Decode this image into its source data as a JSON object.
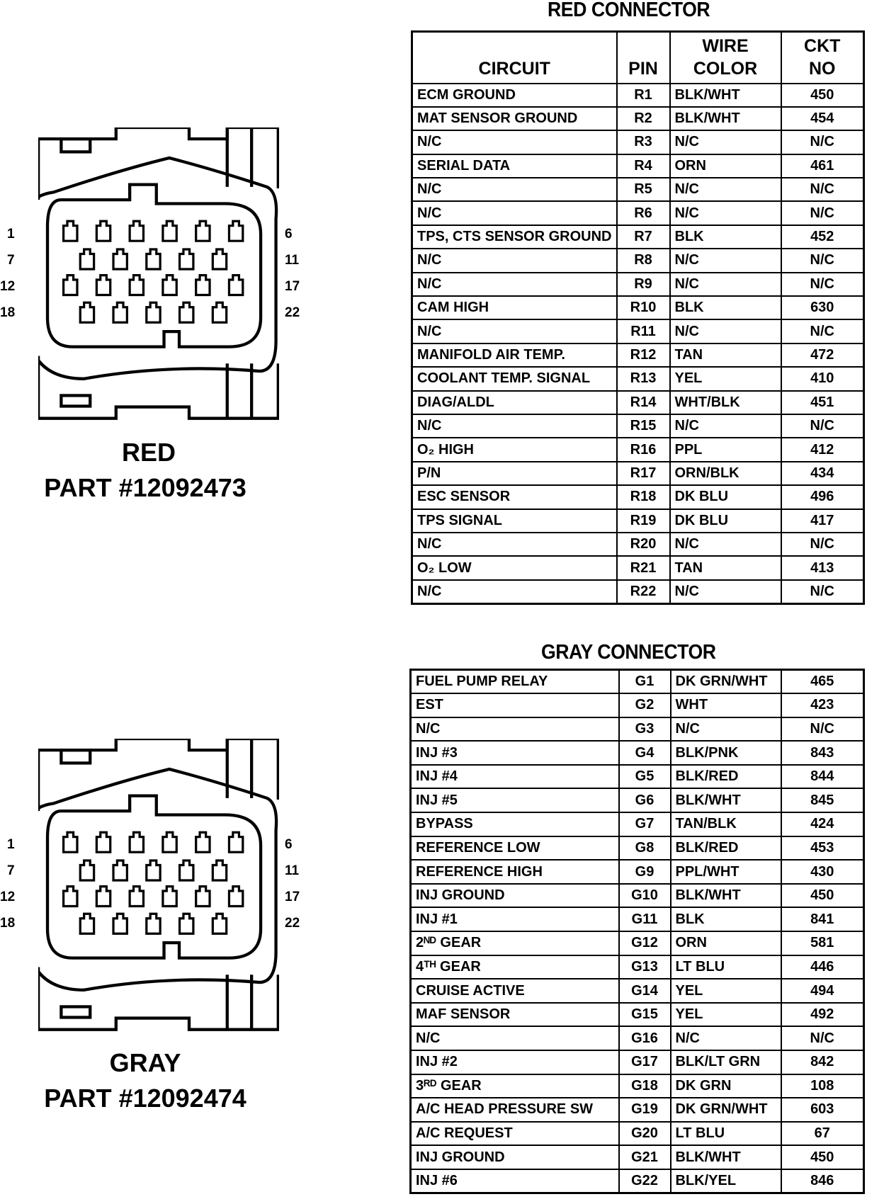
{
  "red": {
    "title": "RED CONNECTOR",
    "label": "RED",
    "part": "PART #12092473",
    "headers": {
      "circuit": "CIRCUIT",
      "pin": "PIN",
      "wire_line1": "WIRE",
      "wire_line2": "COLOR",
      "ckt_line1": "CKT",
      "ckt_line2": "NO"
    },
    "rows": [
      [
        "ECM GROUND",
        "R1",
        "BLK/WHT",
        "450"
      ],
      [
        "MAT SENSOR GROUND",
        "R2",
        "BLK/WHT",
        "454"
      ],
      [
        "N/C",
        "R3",
        "N/C",
        "N/C"
      ],
      [
        "SERIAL DATA",
        "R4",
        "ORN",
        "461"
      ],
      [
        "N/C",
        "R5",
        "N/C",
        "N/C"
      ],
      [
        "N/C",
        "R6",
        "N/C",
        "N/C"
      ],
      [
        "TPS, CTS SENSOR GROUND",
        "R7",
        "BLK",
        "452"
      ],
      [
        "N/C",
        "R8",
        "N/C",
        "N/C"
      ],
      [
        "N/C",
        "R9",
        "N/C",
        "N/C"
      ],
      [
        "CAM  HIGH",
        "R10",
        "BLK",
        "630"
      ],
      [
        "N/C",
        "R11",
        "N/C",
        "N/C"
      ],
      [
        "MANIFOLD AIR TEMP.",
        "R12",
        "TAN",
        "472"
      ],
      [
        "COOLANT TEMP. SIGNAL",
        "R13",
        "YEL",
        "410"
      ],
      [
        "DIAG/ALDL",
        "R14",
        "WHT/BLK",
        "451"
      ],
      [
        "N/C",
        "R15",
        "N/C",
        "N/C"
      ],
      [
        "O₂ HIGH",
        "R16",
        "PPL",
        "412"
      ],
      [
        "P/N",
        "R17",
        "ORN/BLK",
        "434"
      ],
      [
        "ESC SENSOR",
        "R18",
        "DK BLU",
        "496"
      ],
      [
        "TPS SIGNAL",
        "R19",
        "DK BLU",
        "417"
      ],
      [
        "N/C",
        "R20",
        "N/C",
        "N/C"
      ],
      [
        "O₂ LOW",
        "R21",
        "TAN",
        "413"
      ],
      [
        "N/C",
        "R22",
        "N/C",
        "N/C"
      ]
    ]
  },
  "gray": {
    "title": "GRAY CONNECTOR",
    "label": "GRAY",
    "part": "PART #12092474",
    "rows": [
      [
        "FUEL PUMP RELAY",
        "G1",
        "DK GRN/WHT",
        "465"
      ],
      [
        "EST",
        "G2",
        "WHT",
        "423"
      ],
      [
        "N/C",
        "G3",
        "N/C",
        "N/C"
      ],
      [
        "INJ #3",
        "G4",
        "BLK/PNK",
        "843"
      ],
      [
        "INJ #4",
        "G5",
        "BLK/RED",
        "844"
      ],
      [
        "INJ #5",
        "G6",
        "BLK/WHT",
        "845"
      ],
      [
        "BYPASS",
        "G7",
        "TAN/BLK",
        "424"
      ],
      [
        "REFERENCE LOW",
        "G8",
        "BLK/RED",
        "453"
      ],
      [
        "REFERENCE HIGH",
        "G9",
        "PPL/WHT",
        "430"
      ],
      [
        "INJ GROUND",
        "G10",
        "BLK/WHT",
        "450"
      ],
      [
        "INJ #1",
        "G11",
        "BLK",
        "841"
      ],
      [
        "2ᴺᴰ GEAR",
        "G12",
        "ORN",
        "581"
      ],
      [
        "4ᵀᴴ GEAR",
        "G13",
        "LT BLU",
        "446"
      ],
      [
        "CRUISE  ACTIVE",
        "G14",
        "YEL",
        "494"
      ],
      [
        "MAF SENSOR",
        "G15",
        "YEL",
        "492"
      ],
      [
        "N/C",
        "G16",
        "N/C",
        "N/C"
      ],
      [
        "INJ #2",
        "G17",
        "BLK/LT GRN",
        "842"
      ],
      [
        "3ᴿᴰ GEAR",
        "G18",
        "DK GRN",
        "108"
      ],
      [
        "A/C HEAD PRESSURE SW",
        "G19",
        "DK GRN/WHT",
        "603"
      ],
      [
        "A/C REQUEST",
        "G20",
        "LT BLU",
        "67"
      ],
      [
        "INJ GROUND",
        "G21",
        "BLK/WHT",
        "450"
      ],
      [
        "INJ #6",
        "G22",
        "BLK/YEL",
        "846"
      ]
    ]
  },
  "pin_numbers": {
    "left": [
      "1",
      "7",
      "12",
      "18"
    ],
    "right": [
      "6",
      "11",
      "17",
      "22"
    ]
  }
}
